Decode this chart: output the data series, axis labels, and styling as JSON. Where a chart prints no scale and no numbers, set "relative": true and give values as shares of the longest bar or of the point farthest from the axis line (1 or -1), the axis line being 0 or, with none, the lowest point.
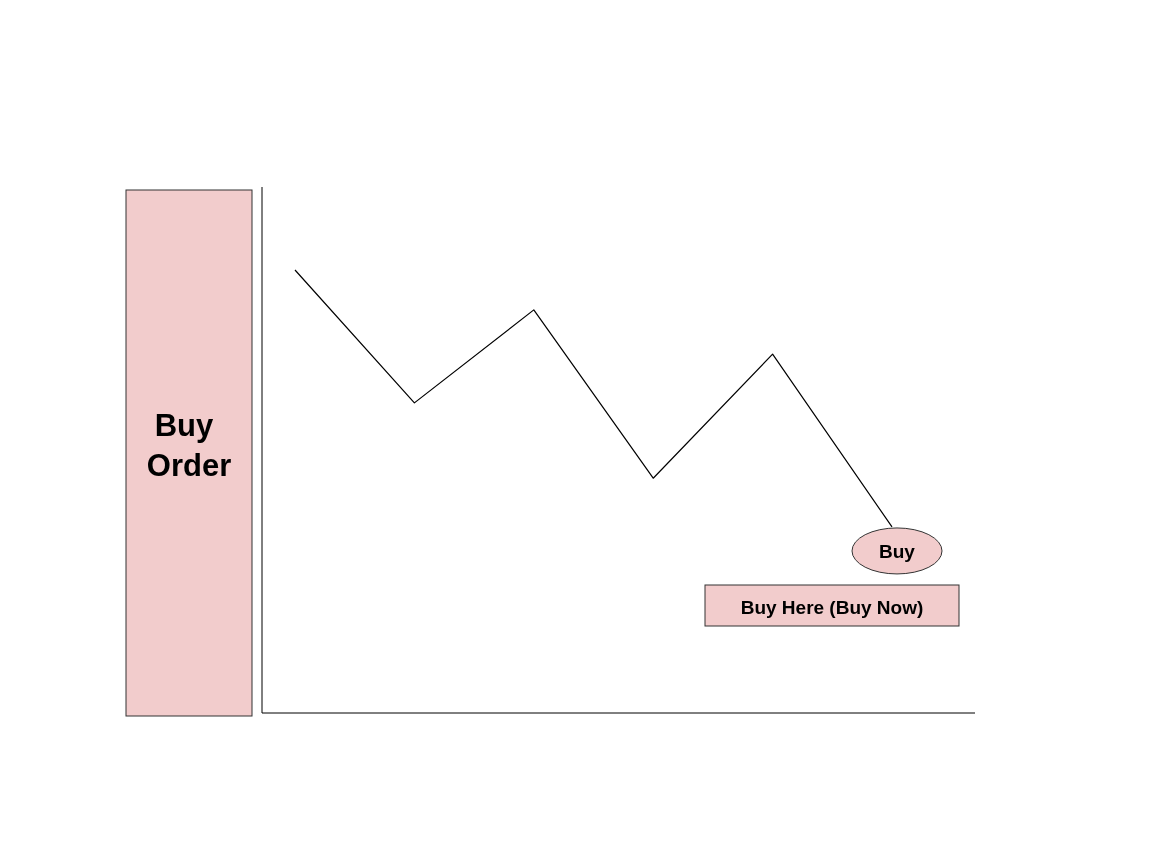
{
  "chart_data": {
    "type": "line",
    "relative": true,
    "ylabel": "Buy Order",
    "categories": [
      null,
      null,
      null,
      null,
      null,
      null
    ],
    "series": [
      {
        "color": "#000000",
        "values": [
          1,
          0.7,
          0.91,
          0.53,
          0.81,
          0.42
        ]
      }
    ],
    "annotations": [
      "Buy",
      "Buy Here (Buy Now)"
    ],
    "marker": "none",
    "line_style": "solid"
  }
}
